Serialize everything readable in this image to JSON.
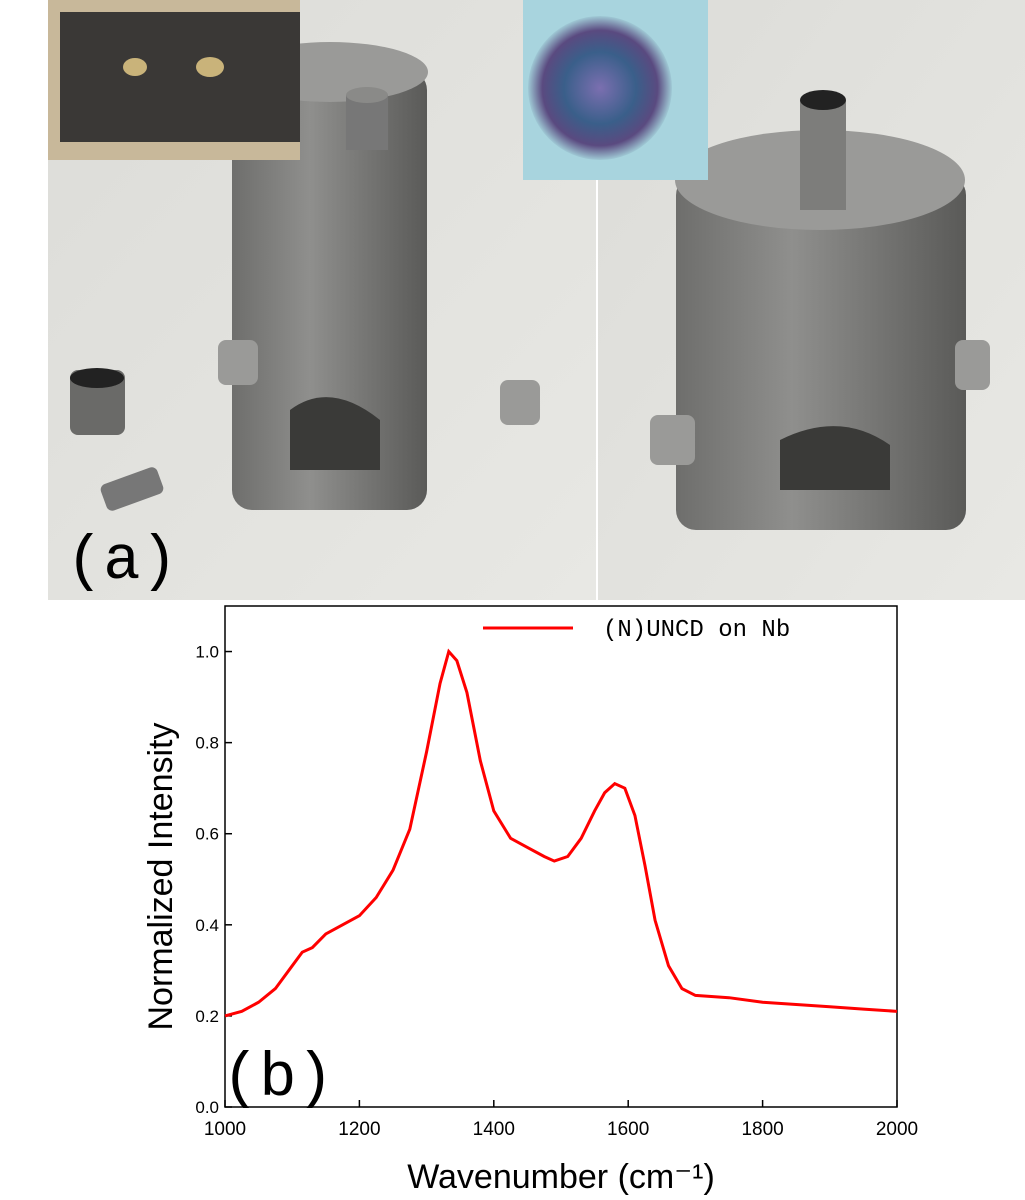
{
  "panel_a": {
    "label": "(a)"
  },
  "chart_data": {
    "type": "line",
    "panel_label": "(b)",
    "xlabel": "Wavenumber (cm⁻¹)",
    "ylabel": "Normalized Intensity",
    "xlim": [
      1000,
      2000
    ],
    "xticks": [
      1000,
      1200,
      1400,
      1600,
      1800,
      2000
    ],
    "ylim": [
      0,
      1.1
    ],
    "yticks": [
      {
        "value": 0,
        "label": "0.0"
      },
      0.2,
      0.4,
      0.6,
      0.8,
      {
        "value": 1,
        "label": "1.0"
      }
    ],
    "legend": "upper right",
    "x": [
      1000,
      1025,
      1050,
      1075,
      1100,
      1115,
      1130,
      1150,
      1175,
      1200,
      1225,
      1250,
      1275,
      1300,
      1320,
      1333,
      1345,
      1360,
      1380,
      1400,
      1425,
      1450,
      1475,
      1490,
      1510,
      1530,
      1550,
      1565,
      1580,
      1595,
      1610,
      1625,
      1640,
      1660,
      1680,
      1700,
      1750,
      1800,
      1850,
      1900,
      1950,
      2000
    ],
    "series": [
      {
        "name": "(N)UNCD on Nb",
        "color": "#ff0000",
        "values": [
          0.2,
          0.21,
          0.23,
          0.26,
          0.31,
          0.34,
          0.35,
          0.38,
          0.4,
          0.42,
          0.46,
          0.52,
          0.61,
          0.78,
          0.93,
          1.0,
          0.98,
          0.91,
          0.76,
          0.65,
          0.59,
          0.57,
          0.55,
          0.54,
          0.55,
          0.59,
          0.65,
          0.69,
          0.71,
          0.7,
          0.64,
          0.53,
          0.41,
          0.31,
          0.26,
          0.245,
          0.24,
          0.23,
          0.225,
          0.22,
          0.215,
          0.21
        ]
      }
    ]
  }
}
